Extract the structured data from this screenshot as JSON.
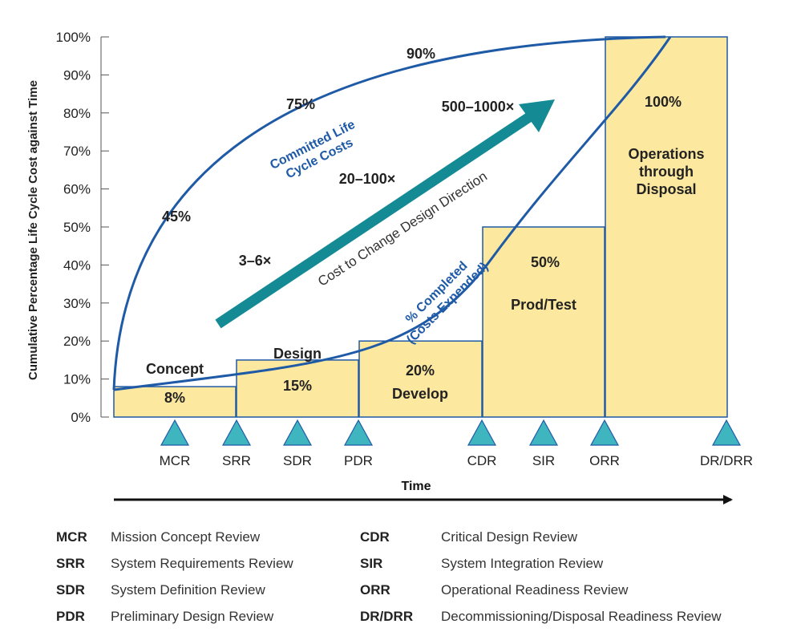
{
  "chart_data": {
    "type": "bar",
    "ylabel": "Cumulative Percentage Life Cycle Cost against Time",
    "xlabel": "Time",
    "ylim": [
      0,
      100
    ],
    "yticks": [
      "0%",
      "10%",
      "20%",
      "30%",
      "40%",
      "50%",
      "60%",
      "70%",
      "80%",
      "90%",
      "100%"
    ],
    "yticks_values": [
      0,
      10,
      20,
      30,
      40,
      50,
      60,
      70,
      80,
      90,
      100
    ],
    "phases": [
      {
        "name": "Concept",
        "pct_label": "8%",
        "value": 8
      },
      {
        "name": "Design",
        "pct_label": "15%",
        "value": 15
      },
      {
        "name": "Develop",
        "pct_label": "20%",
        "value": 20
      },
      {
        "name": "Prod/Test",
        "pct_label": "50%",
        "value": 50
      },
      {
        "name": "Operations through Disposal",
        "name_lines": [
          "Operations",
          "through",
          "Disposal"
        ],
        "pct_label": "100%",
        "value": 100
      }
    ],
    "committed_curve": {
      "name_lines": [
        "Committed Life",
        "Cycle Costs"
      ],
      "labels": [
        "45%",
        "75%",
        "90%"
      ],
      "color": "#1f5aa6"
    },
    "completed_curve": {
      "name_lines": [
        "% Completed",
        "(Costs Expended)"
      ],
      "color": "#1f5aa6"
    },
    "cost_to_change": {
      "label": "Cost to Change Design Direction",
      "multipliers": [
        "3–6×",
        "20–100×",
        "500–1000×"
      ],
      "color": "#138a94"
    },
    "milestones": [
      "MCR",
      "SRR",
      "SDR",
      "PDR",
      "CDR",
      "SIR",
      "ORR",
      "DR/DRR"
    ],
    "colors": {
      "bar_fill": "#fde8a0",
      "bar_stroke": "#1f5aa6",
      "milestone": "#3fb6bf"
    }
  },
  "legend": [
    {
      "code": "MCR",
      "desc": "Mission Concept Review"
    },
    {
      "code": "SRR",
      "desc": "System Requirements Review"
    },
    {
      "code": "SDR",
      "desc": "System Definition Review"
    },
    {
      "code": "PDR",
      "desc": "Preliminary Design Review"
    },
    {
      "code": "CDR",
      "desc": "Critical Design Review"
    },
    {
      "code": "SIR",
      "desc": "System Integration Review"
    },
    {
      "code": "ORR",
      "desc": "Operational Readiness Review"
    },
    {
      "code": "DR/DRR",
      "desc": "Decommissioning/Disposal Readiness Review"
    }
  ]
}
